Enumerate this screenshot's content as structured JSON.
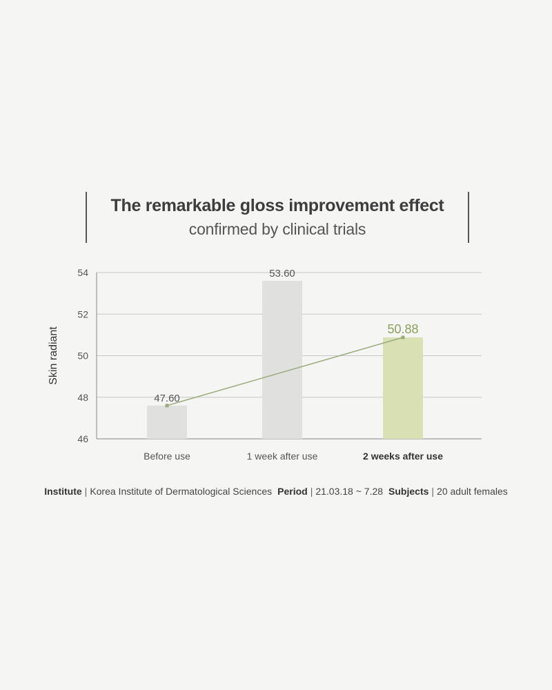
{
  "title": {
    "main": "The remarkable gloss improvement effect",
    "sub": "confirmed by clinical trials"
  },
  "chart_data": {
    "type": "bar",
    "ylabel": "Skin radiant",
    "ylim": [
      46,
      54
    ],
    "yticks": [
      "46",
      "48",
      "50",
      "52",
      "54"
    ],
    "grid": true,
    "categories": [
      "Before use",
      "1 week after use",
      "2 weeks after use"
    ],
    "values": [
      47.6,
      53.6,
      50.88
    ],
    "value_labels": [
      "47.60",
      "53.60",
      "50.88"
    ],
    "highlight_index": 2,
    "trend_line": {
      "from": "Before use",
      "to": "2 weeks after use"
    },
    "colors": {
      "bar": "#e0e0df",
      "highlight_bar": "#d8e0b4",
      "highlight_text": "#8aa05a",
      "trend_line": "#9aaa7c",
      "grid": "#c6c6c6",
      "axis": "#888888"
    }
  },
  "footer": {
    "institute_key": "Institute",
    "institute_value": "Korea Institute of Dermatological Sciences",
    "period_key": "Period",
    "period_value": "21.03.18 ~ 7.28",
    "subjects_key": "Subjects",
    "subjects_value": "20 adult females",
    "separator": "|"
  }
}
